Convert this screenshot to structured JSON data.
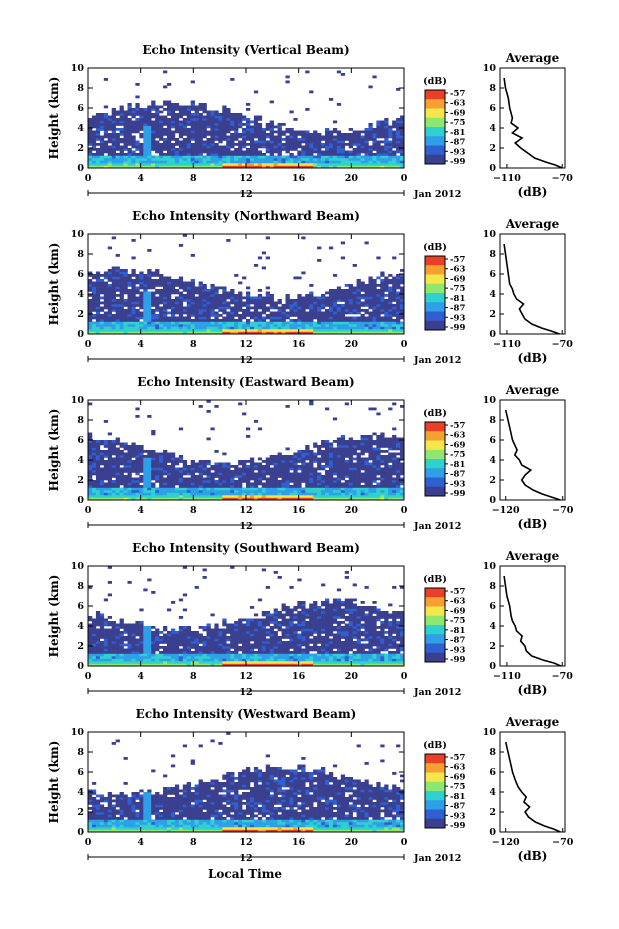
{
  "colors": {
    "stops": [
      "#3a3f8f",
      "#2f5fd0",
      "#2fa0e8",
      "#2fd0d0",
      "#8ee870",
      "#f5e64a",
      "#f5a030",
      "#e8402a"
    ],
    "missing": "#ffffff",
    "line": "#000000"
  },
  "x_axis_label": "Local Time",
  "chart_data": [
    {
      "type": "heatmap",
      "title": "Echo Intensity (Vertical Beam)",
      "ylabel": "Height (km)",
      "xlim": [
        0,
        24
      ],
      "ylim": [
        0,
        10
      ],
      "x_ticks": [
        "0",
        "4",
        "8",
        "12",
        "16",
        "20",
        "0"
      ],
      "y_ticks": [
        "0",
        "2",
        "4",
        "6",
        "8",
        "10"
      ],
      "date_label": "12",
      "month_label": "Jan 2012",
      "colorbar": {
        "label": "(dB)",
        "ticks": [
          "-57",
          "-63",
          "-69",
          "-75",
          "-81",
          "-87",
          "-93",
          "-99"
        ]
      },
      "average": {
        "title": "Average",
        "xlabel": "(dB)",
        "x_ticks": [
          "-110",
          "-70"
        ],
        "xlim": [
          -115,
          -68
        ],
        "y_ticks": [
          "0",
          "2",
          "4",
          "6",
          "8",
          "10"
        ],
        "profile": [
          [
            -70,
            0
          ],
          [
            -75,
            0.3
          ],
          [
            -82,
            0.6
          ],
          [
            -90,
            1
          ],
          [
            -95,
            1.5
          ],
          [
            -100,
            2
          ],
          [
            -104,
            2.5
          ],
          [
            -99,
            3
          ],
          [
            -106,
            3.5
          ],
          [
            -102,
            4
          ],
          [
            -107,
            4.5
          ],
          [
            -106,
            5
          ],
          [
            -108,
            6
          ],
          [
            -109,
            7
          ],
          [
            -111,
            8
          ],
          [
            -112,
            9
          ]
        ]
      }
    },
    {
      "type": "heatmap",
      "title": "Echo Intensity (Northward Beam)",
      "ylabel": "Height (km)",
      "xlim": [
        0,
        24
      ],
      "ylim": [
        0,
        10
      ],
      "x_ticks": [
        "0",
        "4",
        "8",
        "12",
        "16",
        "20",
        "0"
      ],
      "y_ticks": [
        "0",
        "2",
        "4",
        "6",
        "8",
        "10"
      ],
      "date_label": "12",
      "month_label": "Jan 2012",
      "colorbar": {
        "label": "(dB)",
        "ticks": [
          "-57",
          "-63",
          "-69",
          "-75",
          "-81",
          "-87",
          "-93",
          "-99"
        ]
      },
      "average": {
        "title": "Average",
        "xlabel": "(dB)",
        "x_ticks": [
          "-110",
          "-70"
        ],
        "xlim": [
          -115,
          -68
        ],
        "y_ticks": [
          "0",
          "2",
          "4",
          "6",
          "8",
          "10"
        ],
        "profile": [
          [
            -72,
            0
          ],
          [
            -78,
            0.3
          ],
          [
            -85,
            0.6
          ],
          [
            -92,
            1
          ],
          [
            -97,
            1.5
          ],
          [
            -99,
            2
          ],
          [
            -101,
            2.5
          ],
          [
            -98,
            3
          ],
          [
            -103,
            3.5
          ],
          [
            -105,
            4
          ],
          [
            -106,
            4.5
          ],
          [
            -108,
            5
          ],
          [
            -109,
            6
          ],
          [
            -110,
            7
          ],
          [
            -111,
            8
          ],
          [
            -112,
            9
          ]
        ]
      }
    },
    {
      "type": "heatmap",
      "title": "Echo Intensity (Eastward Beam)",
      "ylabel": "Height (km)",
      "xlim": [
        0,
        24
      ],
      "ylim": [
        0,
        10
      ],
      "x_ticks": [
        "0",
        "4",
        "8",
        "12",
        "16",
        "20",
        "0"
      ],
      "y_ticks": [
        "0",
        "2",
        "4",
        "6",
        "8",
        "10"
      ],
      "date_label": "12",
      "month_label": "Jan 2012",
      "colorbar": {
        "label": "(dB)",
        "ticks": [
          "-57",
          "-63",
          "-69",
          "-75",
          "-81",
          "-87",
          "-93",
          "-99"
        ]
      },
      "average": {
        "title": "Average",
        "xlabel": "(dB)",
        "x_ticks": [
          "-120",
          "-70"
        ],
        "xlim": [
          -125,
          -68
        ],
        "y_ticks": [
          "0",
          "2",
          "4",
          "6",
          "8",
          "10"
        ],
        "profile": [
          [
            -72,
            0
          ],
          [
            -80,
            0.3
          ],
          [
            -88,
            0.6
          ],
          [
            -96,
            1
          ],
          [
            -103,
            1.5
          ],
          [
            -106,
            2
          ],
          [
            -103,
            2.5
          ],
          [
            -98,
            3
          ],
          [
            -106,
            3.5
          ],
          [
            -108,
            4
          ],
          [
            -112,
            4.5
          ],
          [
            -110,
            5
          ],
          [
            -114,
            6
          ],
          [
            -116,
            7
          ],
          [
            -118,
            8
          ],
          [
            -120,
            9
          ]
        ]
      }
    },
    {
      "type": "heatmap",
      "title": "Echo Intensity (Southward Beam)",
      "ylabel": "Height (km)",
      "xlim": [
        0,
        24
      ],
      "ylim": [
        0,
        10
      ],
      "x_ticks": [
        "0",
        "4",
        "8",
        "12",
        "16",
        "20",
        "0"
      ],
      "y_ticks": [
        "0",
        "2",
        "4",
        "6",
        "8",
        "10"
      ],
      "date_label": "12",
      "month_label": "Jan 2012",
      "colorbar": {
        "label": "(dB)",
        "ticks": [
          "-57",
          "-63",
          "-69",
          "-75",
          "-81",
          "-87",
          "-93",
          "-99"
        ]
      },
      "average": {
        "title": "Average",
        "xlabel": "(dB)",
        "x_ticks": [
          "-110",
          "-70"
        ],
        "xlim": [
          -115,
          -68
        ],
        "y_ticks": [
          "0",
          "2",
          "4",
          "6",
          "8",
          "10"
        ],
        "profile": [
          [
            -71,
            0
          ],
          [
            -76,
            0.3
          ],
          [
            -84,
            0.6
          ],
          [
            -92,
            1
          ],
          [
            -96,
            1.5
          ],
          [
            -97,
            2
          ],
          [
            -100,
            2.5
          ],
          [
            -99,
            3
          ],
          [
            -103,
            3.5
          ],
          [
            -104,
            4
          ],
          [
            -106,
            4.5
          ],
          [
            -107,
            5
          ],
          [
            -108,
            6
          ],
          [
            -110,
            7
          ],
          [
            -111,
            8
          ],
          [
            -112,
            9
          ]
        ]
      }
    },
    {
      "type": "heatmap",
      "title": "Echo Intensity (Westward Beam)",
      "ylabel": "Height (km)",
      "xlim": [
        0,
        24
      ],
      "ylim": [
        0,
        10
      ],
      "x_ticks": [
        "0",
        "4",
        "8",
        "12",
        "16",
        "20",
        "0"
      ],
      "y_ticks": [
        "0",
        "2",
        "4",
        "6",
        "8",
        "10"
      ],
      "date_label": "12",
      "month_label": "Jan 2012",
      "colorbar": {
        "label": "(dB)",
        "ticks": [
          "-57",
          "-63",
          "-69",
          "-75",
          "-81",
          "-87",
          "-93",
          "-99"
        ]
      },
      "average": {
        "title": "Average",
        "xlabel": "(dB)",
        "x_ticks": [
          "-120",
          "-70"
        ],
        "xlim": [
          -125,
          -68
        ],
        "y_ticks": [
          "0",
          "2",
          "4",
          "6",
          "8",
          "10"
        ],
        "profile": [
          [
            -72,
            0
          ],
          [
            -78,
            0.3
          ],
          [
            -86,
            0.6
          ],
          [
            -94,
            1
          ],
          [
            -100,
            1.5
          ],
          [
            -103,
            2
          ],
          [
            -99,
            2.5
          ],
          [
            -104,
            3
          ],
          [
            -102,
            3.5
          ],
          [
            -106,
            4
          ],
          [
            -109,
            4.5
          ],
          [
            -111,
            5
          ],
          [
            -114,
            6
          ],
          [
            -116,
            7
          ],
          [
            -118,
            8
          ],
          [
            -120,
            9
          ]
        ]
      }
    }
  ]
}
